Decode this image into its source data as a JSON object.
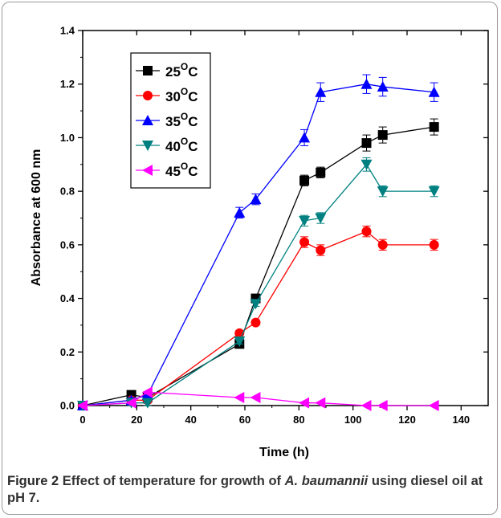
{
  "chart_data": {
    "type": "line",
    "xlabel": "Time (h)",
    "ylabel": "Absorbance at 600 nm",
    "xlim": [
      0,
      150
    ],
    "ylim": [
      0,
      1.4
    ],
    "xticks": [
      0,
      20,
      40,
      60,
      80,
      100,
      120,
      140
    ],
    "yticks": [
      0.0,
      0.2,
      0.4,
      0.6,
      0.8,
      1.0,
      1.2,
      1.4
    ],
    "ytick_labels": [
      "0.0",
      "0.2",
      "0.4",
      "0.6",
      "0.8",
      "1.0",
      "1.2",
      "1.4"
    ],
    "grid": false,
    "legend_position": "top-left",
    "series": [
      {
        "name": "25",
        "marker": "square",
        "color": "#000000",
        "x": [
          0,
          18,
          24,
          58,
          64,
          82,
          88,
          105,
          111,
          130
        ],
        "y": [
          0.0,
          0.04,
          0.03,
          0.23,
          0.4,
          0.84,
          0.87,
          0.98,
          1.01,
          1.04
        ],
        "err": [
          0,
          0.01,
          0.01,
          0.01,
          0.01,
          0.02,
          0.02,
          0.03,
          0.03,
          0.03
        ]
      },
      {
        "name": "30",
        "marker": "circle",
        "color": "#ff0000",
        "x": [
          0,
          18,
          24,
          58,
          64,
          82,
          88,
          105,
          111,
          130
        ],
        "y": [
          0.0,
          0.02,
          0.02,
          0.27,
          0.31,
          0.61,
          0.58,
          0.65,
          0.6,
          0.6
        ],
        "err": [
          0,
          0.01,
          0.01,
          0.01,
          0.01,
          0.02,
          0.02,
          0.02,
          0.02,
          0.02
        ]
      },
      {
        "name": "35",
        "marker": "triangle-up",
        "color": "#0000ff",
        "x": [
          0,
          18,
          24,
          58,
          64,
          82,
          88,
          105,
          111,
          130
        ],
        "y": [
          0.0,
          0.02,
          0.04,
          0.72,
          0.77,
          1.0,
          1.17,
          1.2,
          1.19,
          1.17
        ],
        "err": [
          0,
          0.01,
          0.01,
          0.02,
          0.02,
          0.03,
          0.035,
          0.035,
          0.035,
          0.035
        ]
      },
      {
        "name": "40",
        "marker": "triangle-down",
        "color": "#008080",
        "x": [
          0,
          18,
          24,
          58,
          64,
          82,
          88,
          105,
          111,
          130
        ],
        "y": [
          0.0,
          0.01,
          0.01,
          0.24,
          0.38,
          0.69,
          0.7,
          0.9,
          0.8,
          0.8
        ],
        "err": [
          0,
          0.01,
          0.01,
          0.01,
          0.01,
          0.02,
          0.02,
          0.025,
          0.02,
          0.02
        ]
      },
      {
        "name": "45",
        "marker": "triangle-left",
        "color": "#ff00ff",
        "x": [
          0,
          18,
          24,
          58,
          64,
          82,
          88,
          105,
          111,
          130
        ],
        "y": [
          0.0,
          0.01,
          0.05,
          0.03,
          0.03,
          0.01,
          0.01,
          0.0,
          0.0,
          0.0
        ],
        "err": [
          0,
          0,
          0,
          0,
          0,
          0,
          0,
          0,
          0,
          0
        ]
      }
    ],
    "legend_unit_sup": "O",
    "legend_unit_suffix": "C"
  },
  "caption": {
    "label": "Figure 2",
    "text_before": "Effect of temperature for growth of",
    "species": "A. baumannii",
    "text_after": "using diesel oil at pH 7."
  }
}
